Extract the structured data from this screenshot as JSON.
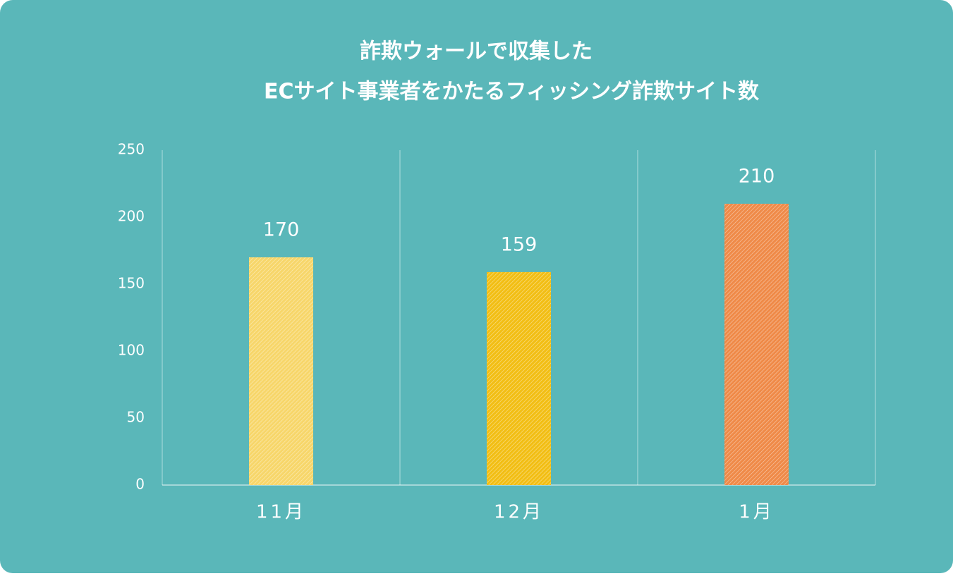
{
  "chart_data": {
    "type": "bar",
    "title": [
      "詐欺ウォールで収集した",
      "ECサイト事業者をかたるフィッシング詐欺サイト数"
    ],
    "categories": [
      "11月",
      "12月",
      "1月"
    ],
    "values": [
      170,
      159,
      210
    ],
    "colors": [
      "#f7d66a",
      "#f2be14",
      "#ef8a48"
    ],
    "ylim": [
      0,
      250
    ],
    "yticks": [
      0,
      50,
      100,
      150,
      200,
      250
    ],
    "data_labels": true
  }
}
